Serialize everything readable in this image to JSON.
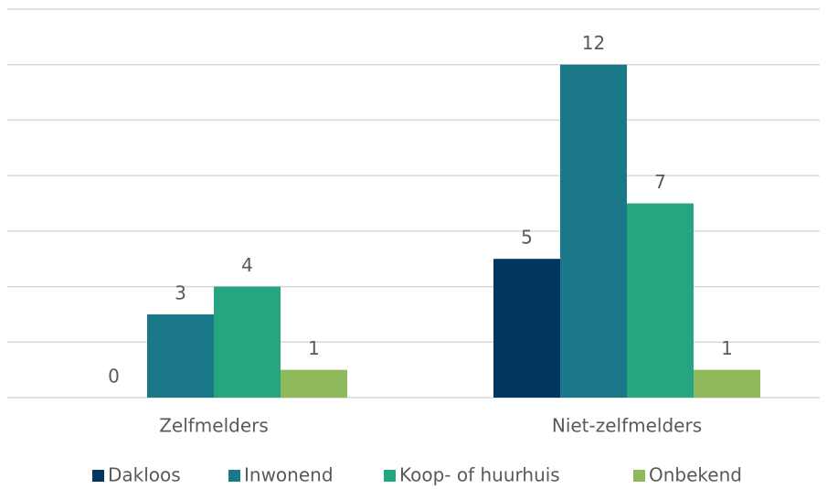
{
  "chart_data": {
    "type": "bar",
    "categories": [
      "Zelfmelders",
      "Niet-zelfmelders"
    ],
    "series": [
      {
        "name": "Dakloos",
        "color": "#003660",
        "values": [
          0,
          5
        ]
      },
      {
        "name": "Inwonend",
        "color": "#1b7889",
        "values": [
          3,
          12
        ]
      },
      {
        "name": "Koop- of huurhuis",
        "color": "#26a581",
        "values": [
          4,
          7
        ]
      },
      {
        "name": "Onbekend",
        "color": "#8fba5c",
        "values": [
          1,
          1
        ]
      }
    ],
    "ylim": [
      0,
      14
    ],
    "yticks": [
      0,
      2,
      4,
      6,
      8,
      10,
      12,
      14
    ],
    "grid": true,
    "legend": "bottom"
  }
}
